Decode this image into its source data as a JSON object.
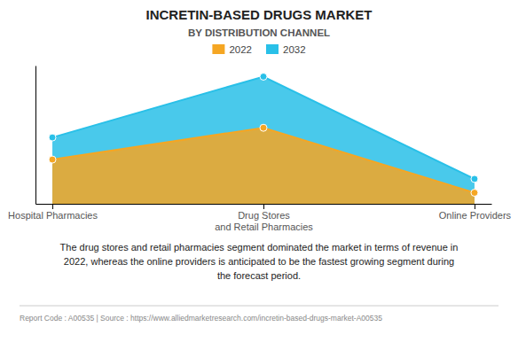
{
  "chart_data": {
    "type": "area",
    "title": "INCRETIN-BASED DRUGS MARKET",
    "subtitle": "BY DISTRIBUTION CHANNEL",
    "categories": [
      "Hospital Pharmacies",
      "Drug Stores\nand Retail Pharmacies",
      "Online Providers"
    ],
    "series": [
      {
        "name": "2022",
        "color": "#F5A623",
        "values": [
          32,
          55,
          8
        ]
      },
      {
        "name": "2032",
        "color": "#29C0E8",
        "values": [
          48,
          92,
          18
        ]
      }
    ],
    "ylim": [
      0,
      100
    ],
    "grid": false,
    "tick_labels": "x",
    "marker": "circle",
    "annotations": [
      "The drug stores and retail pharmacies segment dominated the market in terms of revenue in\n2022, whereas the online providers is anticipated to be the fastest growing segment during\nthe forecast period.",
      "Report Code : A00535  |  Source : https://www.alliedmarketresearch.com/incretin-based-drugs-market-A00535"
    ]
  }
}
